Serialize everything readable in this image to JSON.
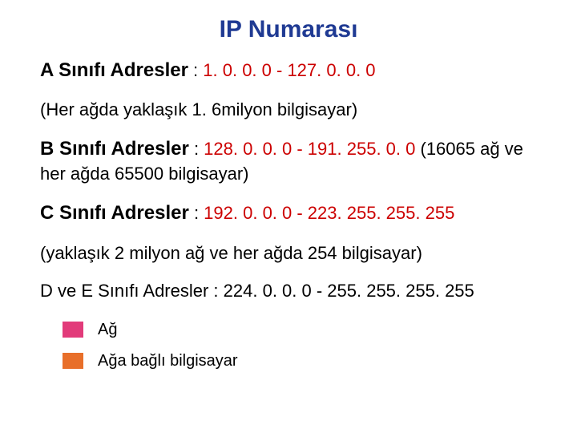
{
  "title": {
    "text": "IP Numarası",
    "color": "#1f3a93",
    "fontsize": 30
  },
  "body_fontsize": 22,
  "classA": {
    "label": "A Sınıfı Adresler",
    "sep": " : ",
    "range": "1. 0. 0. 0 - 127. 0. 0. 0",
    "range_color": "#cc0000",
    "note": "(Her ağda yaklaşık 1. 6milyon bilgisayar)"
  },
  "classB": {
    "label": "B Sınıfı Adresler",
    "sep": " : ",
    "range": "128. 0. 0. 0 - 191. 255. 0. 0",
    "range_color": "#cc0000",
    "tail": " (16065 ağ ve her ağda 65500 bilgisayar)"
  },
  "classC": {
    "label": "C Sınıfı Adresler",
    "sep": " : ",
    "range": "192. 0. 0. 0 - 223. 255. 255. 255",
    "range_color": "#cc0000",
    "note": "(yaklaşık 2 milyon ağ ve her ağda 254 bilgisayar)"
  },
  "classDE": {
    "text": "D ve E Sınıfı Adresler : 224. 0. 0. 0 - 255. 255. 255. 255"
  },
  "legend": {
    "items": [
      {
        "label": "Ağ",
        "color": "#e23b7a"
      },
      {
        "label": "Ağa bağlı bilgisayar",
        "color": "#e86f2a"
      }
    ],
    "fontsize": 20
  }
}
